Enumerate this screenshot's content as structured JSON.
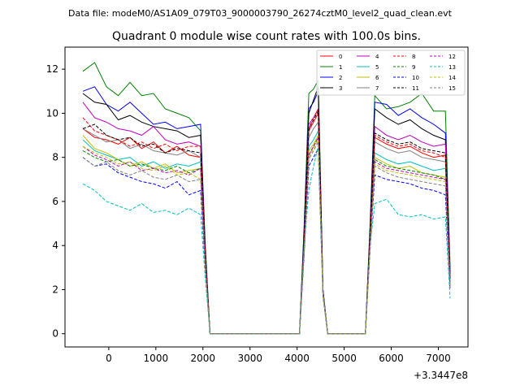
{
  "header": {
    "file_label": "Data file: modeM0/AS1A09_079T03_9000003790_26274cztM0_level2_quad_clean.evt"
  },
  "chart_data": {
    "type": "line",
    "title": "Quadrant 0 module wise count rates with 100.0s bins.",
    "xlabel": "",
    "ylabel": "",
    "x_offset_label": "+3.3447e8",
    "xlim": [
      -930,
      7630
    ],
    "ylim": [
      -0.6,
      13.0
    ],
    "xticks": [
      0,
      1000,
      2000,
      3000,
      4000,
      5000,
      6000,
      7000
    ],
    "yticks": [
      0,
      2,
      4,
      6,
      8,
      10,
      12
    ],
    "legend_position": "top-right",
    "x": [
      -550,
      -300,
      -50,
      200,
      450,
      700,
      950,
      1200,
      1450,
      1700,
      1950,
      2050,
      2150,
      4050,
      4150,
      4250,
      4350,
      4450,
      4550,
      4650,
      5450,
      5550,
      5650,
      5900,
      6150,
      6400,
      6650,
      6900,
      7150,
      7250
    ],
    "series": [
      {
        "name": "0",
        "color": "#ff0000",
        "dash": false,
        "values": [
          9.3,
          8.9,
          8.8,
          8.6,
          8.9,
          8.4,
          8.7,
          8.2,
          8.5,
          8.1,
          8.0,
          3.5,
          0,
          0,
          4.2,
          9.2,
          9.6,
          10.0,
          1.9,
          0,
          0,
          4.5,
          8.9,
          8.6,
          8.4,
          8.5,
          8.2,
          8.0,
          8.1,
          2.5
        ]
      },
      {
        "name": "1",
        "color": "#008000",
        "dash": false,
        "values": [
          11.9,
          12.3,
          11.2,
          10.8,
          11.4,
          10.8,
          10.9,
          10.2,
          10.0,
          9.8,
          9.2,
          4.0,
          0,
          0,
          5.0,
          10.9,
          11.1,
          11.5,
          2.0,
          0,
          0,
          5.0,
          10.8,
          10.2,
          10.3,
          10.5,
          10.9,
          10.1,
          10.1,
          3.0
        ]
      },
      {
        "name": "2",
        "color": "#0000ff",
        "dash": false,
        "values": [
          11.0,
          11.2,
          10.4,
          10.1,
          10.5,
          10.0,
          9.5,
          9.6,
          9.3,
          9.4,
          9.5,
          3.8,
          0,
          0,
          4.8,
          10.2,
          10.5,
          11.0,
          2.0,
          0,
          0,
          4.8,
          10.5,
          10.4,
          9.9,
          10.2,
          9.8,
          9.5,
          9.1,
          2.8
        ]
      },
      {
        "name": "3",
        "color": "#000000",
        "dash": false,
        "values": [
          10.9,
          10.5,
          10.4,
          9.7,
          9.9,
          9.6,
          9.4,
          9.3,
          9.2,
          8.9,
          9.0,
          3.7,
          0,
          0,
          4.6,
          10.0,
          10.6,
          11.2,
          2.0,
          0,
          0,
          4.7,
          10.2,
          9.8,
          9.5,
          9.7,
          9.3,
          9.0,
          8.8,
          2.6
        ]
      },
      {
        "name": "4",
        "color": "#bf00bf",
        "dash": false,
        "values": [
          10.5,
          9.8,
          9.6,
          9.3,
          9.2,
          9.0,
          9.4,
          8.8,
          8.6,
          8.7,
          8.5,
          3.5,
          0,
          0,
          4.3,
          9.5,
          9.8,
          10.2,
          1.9,
          0,
          0,
          4.5,
          9.4,
          9.0,
          8.8,
          9.0,
          8.7,
          8.5,
          8.6,
          2.5
        ]
      },
      {
        "name": "5",
        "color": "#00bfbf",
        "dash": false,
        "values": [
          8.8,
          8.3,
          8.1,
          7.9,
          8.0,
          7.6,
          7.8,
          7.5,
          7.7,
          7.6,
          7.8,
          3.2,
          0,
          0,
          4.0,
          8.5,
          8.8,
          9.2,
          1.8,
          0,
          0,
          4.2,
          8.2,
          7.9,
          7.7,
          7.8,
          7.6,
          7.4,
          7.5,
          2.3
        ]
      },
      {
        "name": "6",
        "color": "#bfbf00",
        "dash": false,
        "values": [
          9.0,
          8.4,
          8.2,
          7.9,
          7.6,
          7.8,
          7.5,
          7.7,
          7.3,
          7.4,
          7.5,
          3.2,
          0,
          0,
          3.9,
          8.3,
          8.6,
          9.0,
          1.8,
          0,
          0,
          4.1,
          8.0,
          7.7,
          7.5,
          7.6,
          7.3,
          7.2,
          7.1,
          2.2
        ]
      },
      {
        "name": "7",
        "color": "#808080",
        "dash": false,
        "values": [
          9.3,
          9.0,
          8.7,
          8.8,
          8.4,
          8.6,
          8.3,
          8.2,
          8.1,
          8.3,
          8.0,
          3.4,
          0,
          0,
          4.1,
          8.9,
          9.3,
          9.6,
          1.9,
          0,
          0,
          4.3,
          8.7,
          8.4,
          8.2,
          8.3,
          8.0,
          7.9,
          7.8,
          2.4
        ]
      },
      {
        "name": "8",
        "color": "#ff0000",
        "dash": true,
        "values": [
          9.8,
          9.2,
          9.0,
          8.8,
          8.5,
          8.7,
          8.4,
          8.6,
          8.3,
          8.5,
          8.5,
          3.6,
          0,
          0,
          4.3,
          9.3,
          9.8,
          10.2,
          1.9,
          0,
          0,
          4.4,
          9.0,
          8.7,
          8.5,
          8.6,
          8.3,
          8.2,
          8.0,
          2.5
        ]
      },
      {
        "name": "9",
        "color": "#008000",
        "dash": true,
        "values": [
          8.3,
          8.0,
          7.8,
          7.9,
          7.6,
          7.7,
          7.5,
          7.4,
          7.6,
          7.3,
          7.5,
          3.1,
          0,
          0,
          3.8,
          8.1,
          8.5,
          8.9,
          1.8,
          0,
          0,
          4.0,
          7.9,
          7.6,
          7.5,
          7.4,
          7.3,
          7.2,
          7.0,
          2.2
        ]
      },
      {
        "name": "10",
        "color": "#0000ff",
        "dash": true,
        "values": [
          8.0,
          7.6,
          7.7,
          7.3,
          7.1,
          6.9,
          6.8,
          6.6,
          6.9,
          6.3,
          6.5,
          2.9,
          0,
          0,
          3.6,
          7.6,
          8.0,
          8.4,
          1.7,
          0,
          0,
          3.8,
          7.2,
          7.0,
          6.9,
          6.8,
          6.6,
          6.5,
          6.3,
          2.0
        ]
      },
      {
        "name": "11",
        "color": "#000000",
        "dash": true,
        "values": [
          9.3,
          9.5,
          9.0,
          8.8,
          8.9,
          8.5,
          8.6,
          8.2,
          8.4,
          8.3,
          8.2,
          3.5,
          0,
          0,
          4.2,
          9.3,
          9.7,
          10.1,
          1.9,
          0,
          0,
          4.4,
          9.1,
          8.8,
          8.6,
          8.7,
          8.4,
          8.3,
          8.2,
          2.5
        ]
      },
      {
        "name": "12",
        "color": "#bf00bf",
        "dash": true,
        "values": [
          8.5,
          8.1,
          7.9,
          7.6,
          7.8,
          7.4,
          7.5,
          7.3,
          7.4,
          7.2,
          7.5,
          3.1,
          0,
          0,
          3.8,
          8.1,
          8.5,
          8.9,
          1.8,
          0,
          0,
          4.0,
          7.8,
          7.5,
          7.4,
          7.3,
          7.2,
          7.1,
          7.0,
          2.2
        ]
      },
      {
        "name": "13",
        "color": "#00bfbf",
        "dash": true,
        "values": [
          6.8,
          6.5,
          6.0,
          5.8,
          5.6,
          5.9,
          5.5,
          5.6,
          5.4,
          5.7,
          5.4,
          2.5,
          0,
          0,
          4.0,
          6.5,
          7.6,
          8.5,
          1.8,
          0,
          0,
          4.0,
          5.9,
          6.1,
          5.4,
          5.3,
          5.4,
          5.2,
          5.3,
          1.6
        ]
      },
      {
        "name": "14",
        "color": "#bfbf00",
        "dash": true,
        "values": [
          8.5,
          8.2,
          8.0,
          7.7,
          7.8,
          7.5,
          7.4,
          7.6,
          7.2,
          7.3,
          7.0,
          3.0,
          0,
          0,
          3.7,
          8.0,
          8.4,
          8.8,
          1.8,
          0,
          0,
          3.9,
          7.7,
          7.4,
          7.3,
          7.2,
          7.1,
          7.0,
          6.9,
          2.1
        ]
      },
      {
        "name": "15",
        "color": "#808080",
        "dash": true,
        "values": [
          8.0,
          7.6,
          7.8,
          7.4,
          7.2,
          7.4,
          7.1,
          7.0,
          7.2,
          6.9,
          7.0,
          3.0,
          0,
          0,
          3.7,
          7.9,
          8.3,
          8.7,
          1.8,
          0,
          0,
          3.9,
          7.6,
          7.3,
          7.1,
          7.0,
          6.9,
          6.8,
          6.7,
          2.1
        ]
      }
    ]
  }
}
